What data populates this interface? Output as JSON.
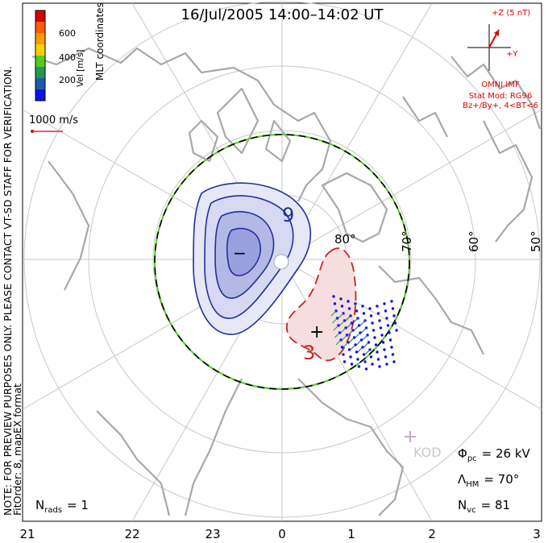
{
  "title": "16/Jul/2005 14:00–14:02 UT",
  "colorbar": {
    "label": "Vel [m/s]",
    "ticks": [
      "600",
      "400",
      "200"
    ],
    "colors": [
      "#d40000",
      "#ff5a00",
      "#ff9a00",
      "#ffd000",
      "#55cc22",
      "#1f9a55",
      "#1d5aa8",
      "#0a14e8"
    ]
  },
  "coord_label": "MLT coordinates",
  "vector_scale": {
    "label": "1000 m/s",
    "color": "#dd0000"
  },
  "imf": {
    "label": "+Z (5 nT)",
    "y_label": "+Y",
    "source": "OMNI IMF",
    "model": "Stat Mod: RG96",
    "bin": "Bz+/By+, 4<BT<6",
    "color": "#dd0000"
  },
  "side_note": "NOTE: FOR PREVIEW PURPOSES ONLY. PLEASE CONTACT VT-SD STAFF FOR VERIFICATION.",
  "fit_order": "FitOrder: 8, mapEX format",
  "latitude_labels": [
    "80°",
    "70°",
    "60°",
    "50°"
  ],
  "mlt_labels": [
    "21",
    "22",
    "23",
    "0",
    "1",
    "2",
    "3"
  ],
  "contours": {
    "neg_label": "9",
    "pos_label": "3",
    "neg_marker": "−",
    "pos_marker": "+",
    "neg_color": "#2030a0",
    "pos_color": "#cc2222"
  },
  "station": {
    "name": "KOD"
  },
  "stats": {
    "phi_pc": {
      "symbol": "Φ",
      "sub": "pc",
      "value": "= 26 kV"
    },
    "lambda_hm": {
      "symbol": "Λ",
      "sub": "HM",
      "value": "= 70°"
    },
    "n_vc": {
      "symbol": "N",
      "sub": "vc",
      "value": "= 81"
    },
    "n_rads": {
      "symbol": "N",
      "sub": "rads",
      "value": "= 1"
    }
  }
}
